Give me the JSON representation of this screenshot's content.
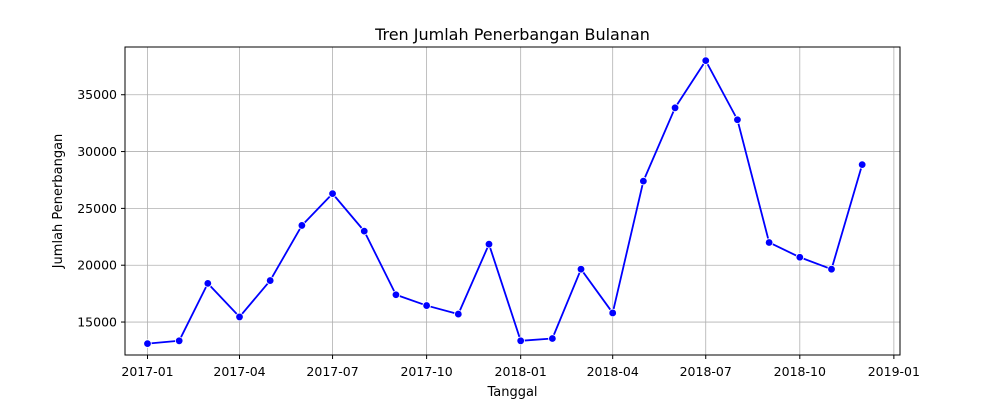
{
  "chart_data": {
    "type": "line",
    "title": "Tren Jumlah Penerbangan Bulanan",
    "xlabel": "Tanggal",
    "ylabel": "Jumlah Penerbangan",
    "grid": true,
    "xlim": [
      "2016-12-10",
      "2019-01-07"
    ],
    "ylim": [
      12100,
      39200
    ],
    "x_ticks": [
      "2017-01",
      "2017-04",
      "2017-07",
      "2017-10",
      "2018-01",
      "2018-04",
      "2018-07",
      "2018-10",
      "2019-01"
    ],
    "y_ticks": [
      15000,
      20000,
      25000,
      30000,
      35000
    ],
    "series": [
      {
        "color": "#0000ff",
        "marker": "circle",
        "x": [
          "2017-01-01",
          "2017-02-01",
          "2017-03-01",
          "2017-04-01",
          "2017-05-01",
          "2017-06-01",
          "2017-07-01",
          "2017-08-01",
          "2017-09-01",
          "2017-10-01",
          "2017-11-01",
          "2017-12-01",
          "2018-01-01",
          "2018-02-01",
          "2018-03-01",
          "2018-04-01",
          "2018-05-01",
          "2018-06-01",
          "2018-07-01",
          "2018-08-01",
          "2018-09-01",
          "2018-10-01",
          "2018-11-01",
          "2018-12-01"
        ],
        "y": [
          13100,
          13350,
          18400,
          15450,
          18650,
          23500,
          26300,
          23000,
          17400,
          16450,
          15700,
          21850,
          13350,
          13550,
          19650,
          15800,
          27400,
          33850,
          38000,
          32800,
          22000,
          20700,
          19650,
          28850
        ]
      }
    ]
  }
}
